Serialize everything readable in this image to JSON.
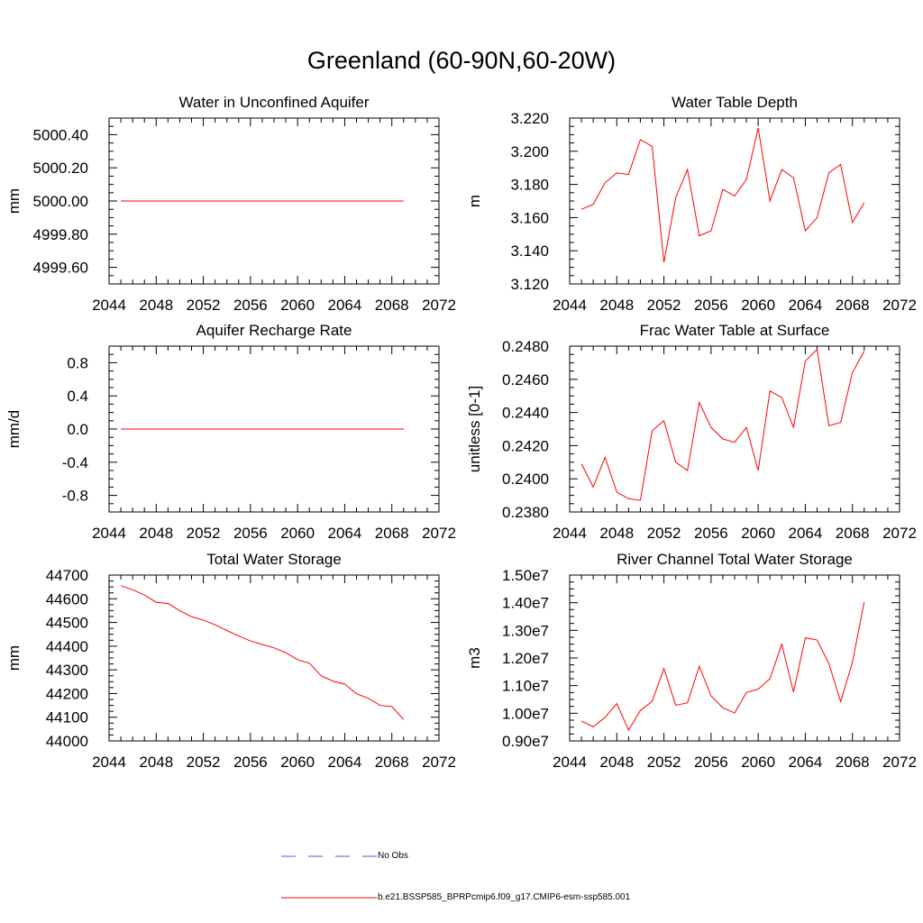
{
  "title": "Greenland (60-90N,60-20W)",
  "line_color": "#ff0000",
  "obs_color": "#5555cc",
  "legend": [
    {
      "label": "No Obs",
      "style": "dashed"
    },
    {
      "label": "b.e21.BSSP585_BPRPcmip6.f09_g17.CMIP6-esm-ssp585.001",
      "style": "solid"
    }
  ],
  "chart_data": [
    {
      "type": "line",
      "title": "Water in Unconfined Aquifer",
      "ylabel": "mm",
      "xlim": [
        2044,
        2072
      ],
      "ylim": [
        4999.5,
        5000.5
      ],
      "xticks": [
        2044,
        2048,
        2052,
        2056,
        2060,
        2064,
        2068,
        2072
      ],
      "yticks": [
        4999.6,
        4999.8,
        5000.0,
        5000.2,
        5000.4
      ],
      "ytick_labels": [
        "4999.60",
        "4999.80",
        "5000.00",
        "5000.20",
        "5000.40"
      ],
      "x": [
        2045,
        2046,
        2047,
        2048,
        2049,
        2050,
        2051,
        2052,
        2053,
        2054,
        2055,
        2056,
        2057,
        2058,
        2059,
        2060,
        2061,
        2062,
        2063,
        2064,
        2065,
        2066,
        2067,
        2068,
        2069
      ],
      "values": [
        5000,
        5000,
        5000,
        5000,
        5000,
        5000,
        5000,
        5000,
        5000,
        5000,
        5000,
        5000,
        5000,
        5000,
        5000,
        5000,
        5000,
        5000,
        5000,
        5000,
        5000,
        5000,
        5000,
        5000,
        5000
      ]
    },
    {
      "type": "line",
      "title": "Water Table Depth",
      "ylabel": "m",
      "xlim": [
        2044,
        2072
      ],
      "ylim": [
        3.12,
        3.22
      ],
      "xticks": [
        2044,
        2048,
        2052,
        2056,
        2060,
        2064,
        2068,
        2072
      ],
      "yticks": [
        3.12,
        3.14,
        3.16,
        3.18,
        3.2,
        3.22
      ],
      "ytick_labels": [
        "3.120",
        "3.140",
        "3.160",
        "3.180",
        "3.200",
        "3.220"
      ],
      "x": [
        2045,
        2046,
        2047,
        2048,
        2049,
        2050,
        2051,
        2052,
        2053,
        2054,
        2055,
        2056,
        2057,
        2058,
        2059,
        2060,
        2061,
        2062,
        2063,
        2064,
        2065,
        2066,
        2067,
        2068,
        2069
      ],
      "values": [
        3.165,
        3.168,
        3.181,
        3.187,
        3.186,
        3.207,
        3.203,
        3.133,
        3.172,
        3.189,
        3.149,
        3.152,
        3.177,
        3.173,
        3.183,
        3.214,
        3.17,
        3.189,
        3.184,
        3.152,
        3.16,
        3.187,
        3.192,
        3.157,
        3.169
      ]
    },
    {
      "type": "line",
      "title": "Aquifer Recharge Rate",
      "ylabel": "mm/d",
      "xlim": [
        2044,
        2072
      ],
      "ylim": [
        -1.0,
        1.0
      ],
      "xticks": [
        2044,
        2048,
        2052,
        2056,
        2060,
        2064,
        2068,
        2072
      ],
      "yticks": [
        -0.8,
        -0.4,
        0.0,
        0.4,
        0.8
      ],
      "ytick_labels": [
        "-0.8",
        "-0.4",
        "0.0",
        "0.4",
        "0.8"
      ],
      "x": [
        2045,
        2046,
        2047,
        2048,
        2049,
        2050,
        2051,
        2052,
        2053,
        2054,
        2055,
        2056,
        2057,
        2058,
        2059,
        2060,
        2061,
        2062,
        2063,
        2064,
        2065,
        2066,
        2067,
        2068,
        2069
      ],
      "values": [
        0,
        0,
        0,
        0,
        0,
        0,
        0,
        0,
        0,
        0,
        0,
        0,
        0,
        0,
        0,
        0,
        0,
        0,
        0,
        0,
        0,
        0,
        0,
        0,
        0
      ]
    },
    {
      "type": "line",
      "title": "Frac Water Table at Surface",
      "ylabel": "unitless [0-1]",
      "xlim": [
        2044,
        2072
      ],
      "ylim": [
        0.238,
        0.248
      ],
      "xticks": [
        2044,
        2048,
        2052,
        2056,
        2060,
        2064,
        2068,
        2072
      ],
      "yticks": [
        0.238,
        0.24,
        0.242,
        0.244,
        0.246,
        0.248
      ],
      "ytick_labels": [
        "0.2380",
        "0.2400",
        "0.2420",
        "0.2440",
        "0.2460",
        "0.2480"
      ],
      "x": [
        2045,
        2046,
        2047,
        2048,
        2049,
        2050,
        2051,
        2052,
        2053,
        2054,
        2055,
        2056,
        2057,
        2058,
        2059,
        2060,
        2061,
        2062,
        2063,
        2064,
        2065,
        2066,
        2067,
        2068,
        2069
      ],
      "values": [
        0.2409,
        0.2395,
        0.2413,
        0.2392,
        0.2388,
        0.2387,
        0.2429,
        0.2435,
        0.241,
        0.2405,
        0.2446,
        0.2431,
        0.2424,
        0.2422,
        0.2431,
        0.2405,
        0.2453,
        0.2449,
        0.2431,
        0.2471,
        0.2478,
        0.2432,
        0.2434,
        0.2464,
        0.2477
      ]
    },
    {
      "type": "line",
      "title": "Total Water Storage",
      "ylabel": "mm",
      "xlim": [
        2044,
        2072
      ],
      "ylim": [
        44000,
        44700
      ],
      "xticks": [
        2044,
        2048,
        2052,
        2056,
        2060,
        2064,
        2068,
        2072
      ],
      "yticks": [
        44000,
        44100,
        44200,
        44300,
        44400,
        44500,
        44600,
        44700
      ],
      "ytick_labels": [
        "44000",
        "44100",
        "44200",
        "44300",
        "44400",
        "44500",
        "44600",
        "44700"
      ],
      "x": [
        2045,
        2046,
        2047,
        2048,
        2049,
        2050,
        2051,
        2052,
        2053,
        2054,
        2055,
        2056,
        2057,
        2058,
        2059,
        2060,
        2061,
        2062,
        2063,
        2064,
        2065,
        2066,
        2067,
        2068,
        2069
      ],
      "values": [
        44655,
        44638,
        44616,
        44585,
        44580,
        44550,
        44524,
        44510,
        44490,
        44466,
        44443,
        44422,
        44407,
        44393,
        44372,
        44343,
        44328,
        44275,
        44252,
        44240,
        44199,
        44180,
        44150,
        44145,
        44090
      ]
    },
    {
      "type": "line",
      "title": "River Channel Total Water Storage",
      "ylabel": "m3",
      "xlim": [
        2044,
        2072
      ],
      "ylim": [
        9000000,
        15000000
      ],
      "xticks": [
        2044,
        2048,
        2052,
        2056,
        2060,
        2064,
        2068,
        2072
      ],
      "yticks": [
        9000000,
        10000000,
        11000000,
        12000000,
        13000000,
        14000000,
        15000000
      ],
      "ytick_labels": [
        "0.90e7",
        "1.00e7",
        "1.10e7",
        "1.20e7",
        "1.30e7",
        "1.40e7",
        "1.50e7"
      ],
      "x": [
        2045,
        2046,
        2047,
        2048,
        2049,
        2050,
        2051,
        2052,
        2053,
        2054,
        2055,
        2056,
        2057,
        2058,
        2059,
        2060,
        2061,
        2062,
        2063,
        2064,
        2065,
        2066,
        2067,
        2068,
        2069
      ],
      "values": [
        9720000,
        9510000,
        9850000,
        10350000,
        9390000,
        10100000,
        10430000,
        11620000,
        10290000,
        10380000,
        11700000,
        10630000,
        10200000,
        10010000,
        10750000,
        10870000,
        11250000,
        12500000,
        10770000,
        12730000,
        12650000,
        11800000,
        10420000,
        11850000,
        14030000
      ]
    }
  ]
}
